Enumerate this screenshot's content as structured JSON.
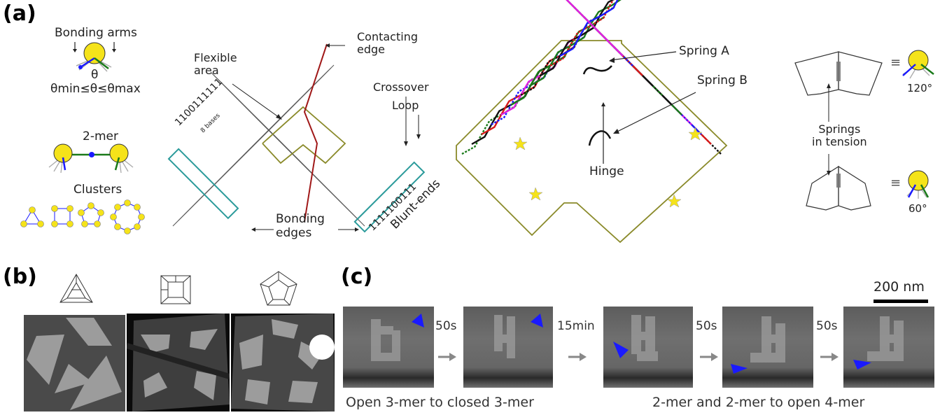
{
  "panels": {
    "a": "(a)",
    "b": "(b)",
    "c": "(c)"
  },
  "panel_a": {
    "bonding_arms": "Bonding arms",
    "theta": "θ",
    "theta_range": "θmin≤θ≤θmax",
    "two_mer": "2-mer",
    "clusters": "Clusters",
    "flexible_area": "Flexible\narea",
    "contacting_edge": "Contacting\nedge",
    "crossover": "Crossover",
    "loop": "Loop",
    "eight_bases": "8 bases",
    "bonding_edges": "Bonding\nedges",
    "blunt_ends": "Blunt-ends",
    "binary_left": "1100111111",
    "binary_right": "1111100111",
    "spring_a": "Spring A",
    "spring_b": "Spring B",
    "hinge": "Hinge",
    "springs_tension": "Springs\nin tension",
    "equiv": "≡",
    "angle_120": "120°",
    "angle_60": "60°"
  },
  "panel_c": {
    "scale": "200 nm",
    "times": [
      "50s",
      "15min",
      "50s",
      "50s"
    ],
    "caption_left": "Open 3-mer to closed 3-mer",
    "caption_right": "2-mer and 2-mer to open 4-mer"
  },
  "colors": {
    "yellow": "#f5e31a",
    "blue": "#1a1aff",
    "green": "#1a7a1a",
    "teal": "#2a9a9a",
    "olive": "#8a8a2a",
    "red": "#a01818"
  }
}
